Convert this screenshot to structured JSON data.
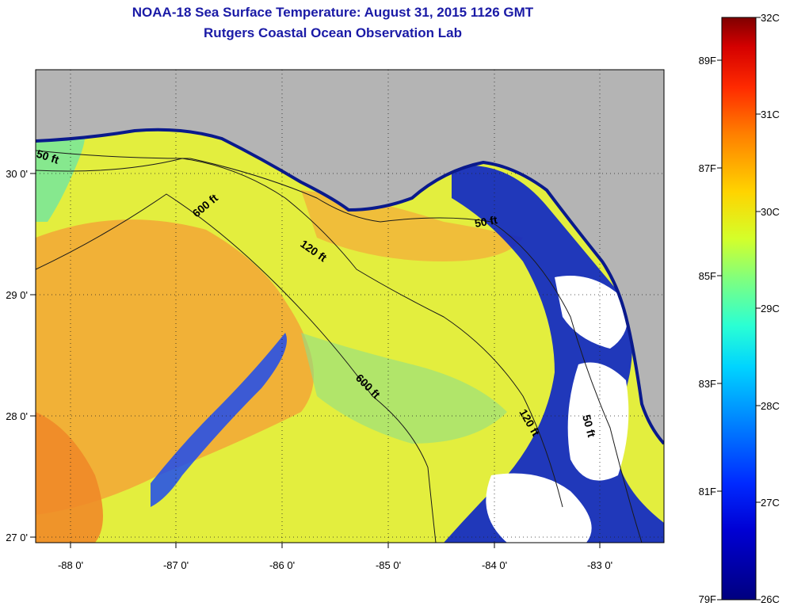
{
  "title": "NOAA-18 Sea Surface Temperature:  August 31, 2015 1126 GMT",
  "subtitle": "Rutgers Coastal Ocean Observation Lab",
  "map": {
    "x_ticks": [
      "-88 0'",
      "-87 0'",
      "-86 0'",
      "-85 0'",
      "-84 0'",
      "-83 0'"
    ],
    "y_ticks": [
      "30 0'",
      "29 0'",
      "28 0'",
      "27 0'"
    ],
    "land_color": "#b4b4b4",
    "cloud_color": "#ffffff",
    "contour_labels": [
      {
        "text": "50 ft"
      },
      {
        "text": "600 ft"
      },
      {
        "text": "120 ft"
      },
      {
        "text": "50 ft"
      },
      {
        "text": "600 ft"
      },
      {
        "text": "120 ft"
      },
      {
        "text": "50 ft"
      }
    ]
  },
  "colorbar": {
    "celsius_labels": [
      "32C",
      "31C",
      "30C",
      "29C",
      "28C",
      "27C",
      "26C"
    ],
    "fahrenheit_labels": [
      "89F",
      "87F",
      "85F",
      "83F",
      "81F",
      "79F"
    ],
    "colors": [
      "#7f0000",
      "#d40000",
      "#ff2a00",
      "#ff7f00",
      "#ffd400",
      "#d4ff2a",
      "#7fff7f",
      "#2affd4",
      "#00d4ff",
      "#007fff",
      "#002aff",
      "#0000d4",
      "#00007f"
    ]
  }
}
